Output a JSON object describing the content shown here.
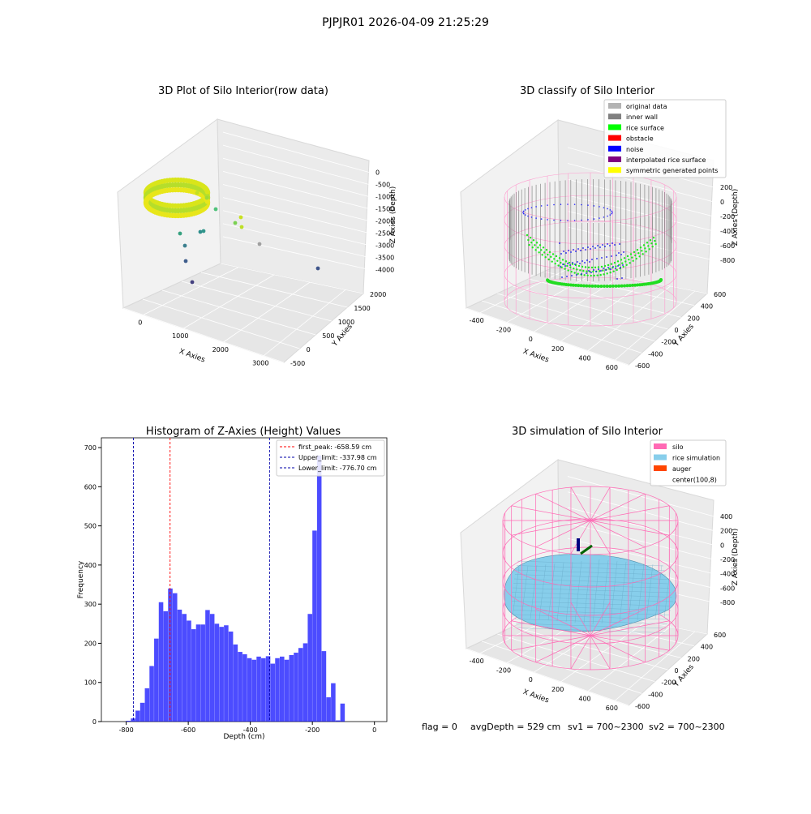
{
  "figure": {
    "suptitle": "PJPJR01 2026-04-09 21:25:29",
    "footer": {
      "flag": "flag = 0",
      "avg_depth": "avgDepth = 529 cm",
      "sv1": "sv1 = 700~2300",
      "sv2": "sv2 = 700~2300"
    }
  },
  "panels": {
    "raw": {
      "title": "3D Plot of Silo Interior(row data)",
      "xlabel": "X Axies",
      "ylabel": "Y Axies",
      "zlabel": "Z Axies (Depth)",
      "xticks": [
        "0",
        "1000",
        "2000",
        "3000"
      ],
      "yticks": [
        "-500",
        "0",
        "500",
        "1000",
        "1500",
        "2000"
      ],
      "zticks": [
        "0",
        "-500",
        "-1000",
        "-1500",
        "-2000",
        "-2500",
        "-3000",
        "-3500",
        "-4000"
      ]
    },
    "classify": {
      "title": "3D classify of Silo Interior",
      "xlabel": "X Axies",
      "ylabel": "Y Axies",
      "zlabel": "Z Axies (Depth)",
      "xticks": [
        "-400",
        "-200",
        "0",
        "200",
        "400",
        "600"
      ],
      "yticks": [
        "-600",
        "-400",
        "-200",
        "0",
        "200",
        "400",
        "600"
      ],
      "zticks": [
        "200",
        "0",
        "-200",
        "-400",
        "-600",
        "-800"
      ],
      "legend": [
        {
          "label": "original data",
          "color": "#b3b3b3"
        },
        {
          "label": "inner wall",
          "color": "#808080"
        },
        {
          "label": "rice surface",
          "color": "#00ff00"
        },
        {
          "label": "obstacle",
          "color": "#ff0000"
        },
        {
          "label": "noise",
          "color": "#0000ff"
        },
        {
          "label": "interpolated rice surface",
          "color": "#800080"
        },
        {
          "label": "symmetric generated points",
          "color": "#ffff00"
        }
      ]
    },
    "simulation": {
      "title": "3D simulation of Silo Interior",
      "xlabel": "X Axies",
      "ylabel": "Y Axies",
      "zlabel": "Z Axies (Depth)",
      "xticks": [
        "-400",
        "-200",
        "0",
        "200",
        "400",
        "600"
      ],
      "yticks": [
        "-600",
        "-400",
        "-200",
        "0",
        "200",
        "400",
        "600"
      ],
      "zticks": [
        "400",
        "200",
        "0",
        "-200",
        "-400",
        "-600",
        "-800"
      ],
      "legend": [
        {
          "label": "silo",
          "color": "#ff69b4"
        },
        {
          "label": "rice simulation",
          "color": "#87ceeb"
        },
        {
          "label": "auger",
          "color": "#ff4500"
        },
        {
          "label": "center(100,8)",
          "color": "#ffffff"
        }
      ]
    }
  },
  "chart_data": {
    "type": "bar",
    "title": "Histogram of Z-Axies (Height) Values",
    "xlabel": "Depth (cm)",
    "ylabel": "Frequency",
    "xlim": [
      -880,
      40
    ],
    "ylim": [
      0,
      725
    ],
    "xticks": [
      -800,
      -600,
      -400,
      -200,
      0
    ],
    "yticks": [
      0,
      100,
      200,
      300,
      400,
      500,
      600,
      700
    ],
    "bin_start": -800,
    "bin_width": 15,
    "values": [
      2,
      8,
      28,
      48,
      85,
      142,
      212,
      305,
      282,
      340,
      328,
      286,
      275,
      258,
      236,
      248,
      248,
      285,
      275,
      250,
      242,
      246,
      230,
      197,
      178,
      172,
      162,
      158,
      166,
      162,
      167,
      148,
      162,
      166,
      158,
      170,
      176,
      188,
      200,
      275,
      488,
      680,
      180,
      62,
      98,
      3,
      46
    ],
    "color": "#0000ff",
    "reference_lines": [
      {
        "label": "first_peak: -658.59 cm",
        "value": -658.59,
        "color": "#ff0000"
      },
      {
        "label": "Upper_limit: -337.98 cm",
        "value": -337.98,
        "color": "#0000aa"
      },
      {
        "label": "Lower_limit: -776.70 cm",
        "value": -776.7,
        "color": "#0000aa"
      }
    ],
    "legend_position": "top-right"
  }
}
